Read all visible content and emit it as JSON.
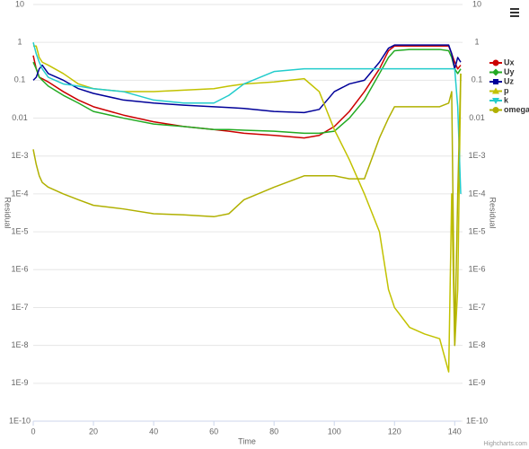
{
  "chart_data": {
    "type": "line",
    "xlabel": "Time",
    "ylabel": "Residual",
    "y2label": "Residual",
    "credits": "Highcharts.com",
    "log_y": true,
    "grid": true,
    "legend": "right",
    "x": [
      0,
      1,
      2,
      3,
      5,
      10,
      15,
      20,
      30,
      40,
      50,
      60,
      65,
      70,
      80,
      90,
      95,
      100,
      105,
      110,
      115,
      118,
      120,
      125,
      130,
      135,
      138,
      139,
      140,
      141,
      142
    ],
    "xlim": [
      0,
      142
    ],
    "xticks": [
      0,
      20,
      40,
      60,
      80,
      100,
      120,
      140
    ],
    "ylim": [
      1e-10,
      10
    ],
    "yticks": [
      10,
      1,
      0.1,
      0.01,
      {
        "value": 0.001,
        "label": "1E-3"
      },
      {
        "value": 0.0001,
        "label": "1E-4"
      },
      {
        "value": 1e-05,
        "label": "1E-5"
      },
      {
        "value": 1e-06,
        "label": "1E-6"
      },
      {
        "value": 1e-07,
        "label": "1E-7"
      },
      {
        "value": 1e-08,
        "label": "1E-8"
      },
      {
        "value": 1e-09,
        "label": "1E-9"
      },
      {
        "value": 1e-10,
        "label": "1E-10"
      }
    ],
    "y2lim": [
      1e-10,
      10
    ],
    "y2ticks": [
      10,
      1,
      0.1,
      0.01,
      {
        "value": 0.001,
        "label": "1E-3"
      },
      {
        "value": 0.0001,
        "label": "1E-4"
      },
      {
        "value": 1e-05,
        "label": "1E-5"
      },
      {
        "value": 1e-06,
        "label": "1E-6"
      },
      {
        "value": 1e-07,
        "label": "1E-7"
      },
      {
        "value": 1e-08,
        "label": "1E-8"
      },
      {
        "value": 1e-09,
        "label": "1E-9"
      },
      {
        "value": 1e-10,
        "label": "1E-10"
      }
    ],
    "series": [
      {
        "name": "Ux",
        "color": "#cc0000",
        "marker": "circle",
        "values": [
          0.45,
          0.2,
          0.12,
          0.11,
          0.09,
          0.05,
          0.03,
          0.02,
          0.012,
          0.008,
          0.006,
          0.005,
          0.0045,
          0.004,
          0.0035,
          0.003,
          0.0035,
          0.006,
          0.015,
          0.05,
          0.2,
          0.6,
          0.8,
          0.8,
          0.8,
          0.8,
          0.8,
          0.5,
          0.3,
          0.2,
          0.25
        ]
      },
      {
        "name": "Uy",
        "color": "#22aa22",
        "marker": "diamond",
        "values": [
          0.3,
          0.2,
          0.12,
          0.1,
          0.07,
          0.04,
          0.025,
          0.015,
          0.01,
          0.007,
          0.006,
          0.005,
          0.005,
          0.0048,
          0.0045,
          0.004,
          0.004,
          0.0045,
          0.01,
          0.03,
          0.15,
          0.4,
          0.6,
          0.65,
          0.65,
          0.65,
          0.6,
          0.4,
          0.2,
          0.15,
          0.2
        ]
      },
      {
        "name": "Uz",
        "color": "#000099",
        "marker": "square",
        "values": [
          0.1,
          0.12,
          0.2,
          0.25,
          0.15,
          0.1,
          0.06,
          0.045,
          0.03,
          0.025,
          0.022,
          0.02,
          0.019,
          0.018,
          0.015,
          0.014,
          0.017,
          0.05,
          0.08,
          0.1,
          0.3,
          0.7,
          0.85,
          0.85,
          0.85,
          0.85,
          0.85,
          0.5,
          0.2,
          0.4,
          0.3
        ]
      },
      {
        "name": "p",
        "color": "#c2c200",
        "marker": "triangle",
        "values": [
          0.8,
          0.8,
          0.4,
          0.3,
          0.25,
          0.15,
          0.08,
          0.06,
          0.05,
          0.05,
          0.055,
          0.06,
          0.07,
          0.08,
          0.09,
          0.11,
          0.05,
          0.005,
          0.0008,
          0.0001,
          1e-05,
          3e-07,
          1e-07,
          3e-08,
          2e-08,
          1.5e-08,
          2e-09,
          0.0001,
          1e-08,
          3e-07,
          0.15
        ]
      },
      {
        "name": "k",
        "color": "#22cccc",
        "marker": "triangle-down",
        "values": [
          1,
          0.5,
          0.3,
          0.2,
          0.12,
          0.08,
          0.07,
          0.06,
          0.05,
          0.03,
          0.025,
          0.025,
          0.04,
          0.08,
          0.17,
          0.2,
          0.2,
          0.2,
          0.2,
          0.2,
          0.2,
          0.2,
          0.2,
          0.2,
          0.2,
          0.2,
          0.2,
          0.2,
          0.2,
          0.02,
          0.0001
        ]
      },
      {
        "name": "omega",
        "color": "#b0b000",
        "marker": "circle",
        "values": [
          0.0015,
          0.0006,
          0.0003,
          0.0002,
          0.00015,
          0.0001,
          7e-05,
          5e-05,
          4e-05,
          3e-05,
          2.8e-05,
          2.5e-05,
          3e-05,
          7e-05,
          0.00015,
          0.0003,
          0.0003,
          0.0003,
          0.00025,
          0.00025,
          0.003,
          0.01,
          0.02,
          0.02,
          0.02,
          0.02,
          0.025,
          0.05,
          1e-08,
          0.0001,
          0.15
        ]
      }
    ]
  }
}
